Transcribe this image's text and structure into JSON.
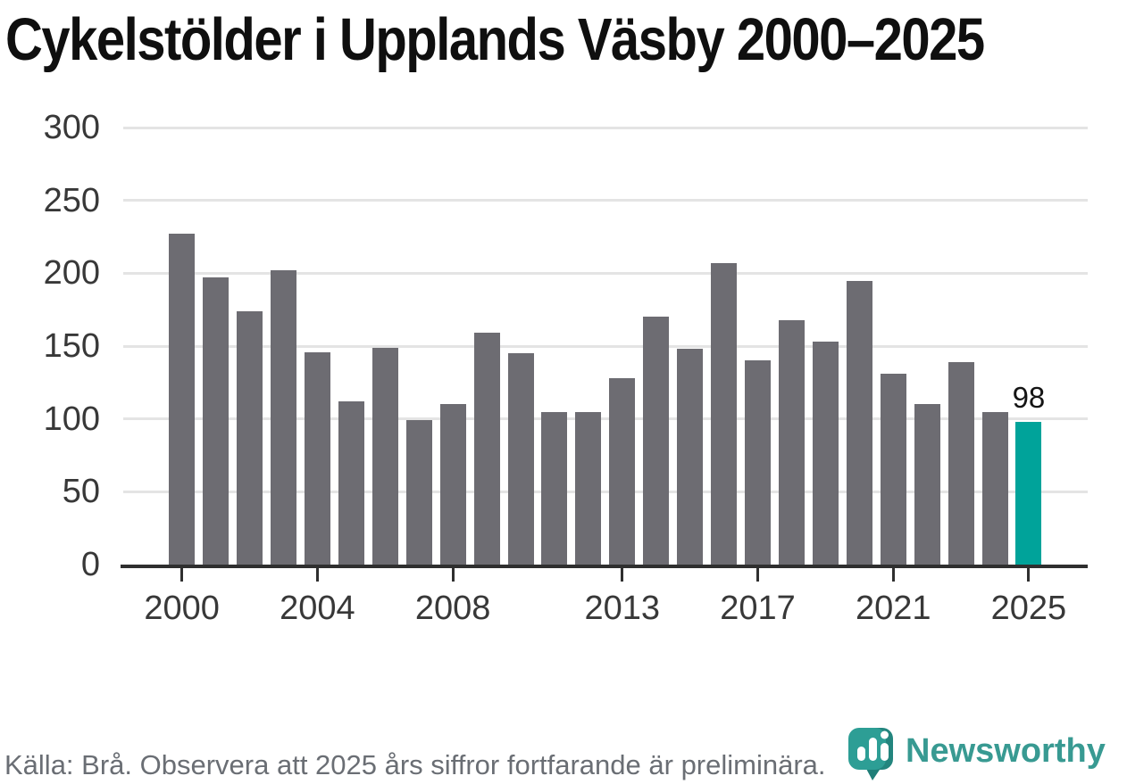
{
  "title": "Cykelstölder i Upplands Väsby 2000–2025",
  "chart_data": {
    "type": "bar",
    "title": "Cykelstölder i Upplands Väsby 2000–2025",
    "x": [
      2000,
      2001,
      2002,
      2003,
      2004,
      2005,
      2006,
      2007,
      2008,
      2009,
      2010,
      2011,
      2012,
      2013,
      2014,
      2015,
      2016,
      2017,
      2018,
      2019,
      2020,
      2021,
      2022,
      2023,
      2024,
      2025
    ],
    "values": [
      227,
      197,
      174,
      202,
      146,
      112,
      149,
      99,
      110,
      159,
      145,
      105,
      105,
      128,
      170,
      148,
      207,
      140,
      168,
      153,
      195,
      131,
      110,
      139,
      105,
      98
    ],
    "ylim": [
      0,
      300
    ],
    "y_ticks": [
      0,
      50,
      100,
      150,
      200,
      250,
      300
    ],
    "x_tick_years": [
      2000,
      2004,
      2008,
      2013,
      2017,
      2021,
      2025
    ],
    "grid": "horizontal",
    "legend": "none",
    "xlabel": "",
    "ylabel": "",
    "highlight_year": 2025,
    "highlight_value_label": "98",
    "bar_color": "#6d6c72",
    "highlight_color": "#00a39a"
  },
  "footer": {
    "source_note": "Källa: Brå. Observera att 2025 års siffror fortfarande är preliminära."
  },
  "logo": {
    "text": "Newsworthy",
    "icon": "newsworthy-speech-bubble-bar-chart-icon",
    "text_color": "#389a92",
    "icon_color": "#2d9e95",
    "icon_shade_color": "#23857e"
  }
}
